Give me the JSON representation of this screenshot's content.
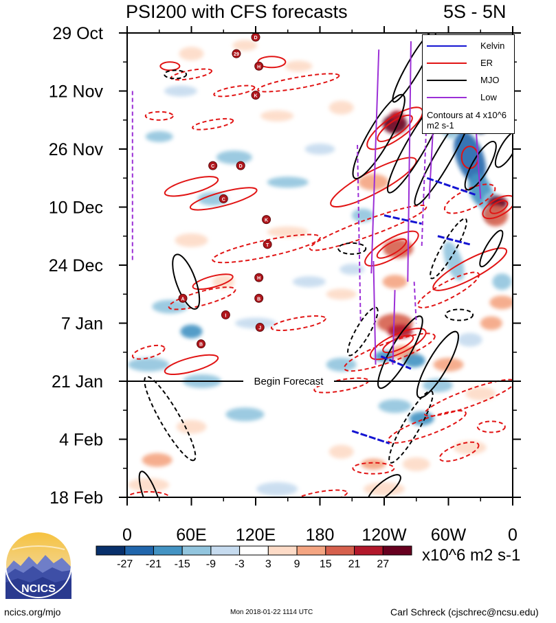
{
  "header": {
    "title": "PSI200 with CFS forecasts",
    "region": "5S - 5N"
  },
  "chart_data": {
    "type": "heatmap",
    "title": "PSI200 with CFS forecasts",
    "region": "5S - 5N",
    "x_tick_labels": [
      "0",
      "60E",
      "120E",
      "180",
      "120W",
      "60W",
      "0"
    ],
    "x_tick_degrees": [
      0,
      60,
      120,
      180,
      240,
      300,
      360
    ],
    "xlim": [
      0,
      360
    ],
    "y_tick_labels": [
      "29 Oct",
      "12 Nov",
      "26 Nov",
      "10 Dec",
      "24 Dec",
      "7 Jan",
      "21 Jan",
      "4 Feb",
      "18 Feb"
    ],
    "y_days_since_start": [
      0,
      14,
      28,
      42,
      56,
      70,
      84,
      98,
      112
    ],
    "forecast_marker": {
      "label": "Begin Forecast",
      "at": "21 Jan"
    },
    "colorbar": {
      "labels": [
        "-27",
        "-21",
        "-15",
        "-9",
        "-3",
        "3",
        "9",
        "15",
        "21",
        "27"
      ],
      "colors": [
        "#08306b",
        "#2166ac",
        "#4393c3",
        "#92c5de",
        "#c6dbef",
        "#ffffff",
        "#fddbc7",
        "#f4a582",
        "#d6604d",
        "#b2182b",
        "#67001f"
      ],
      "units": "x10^6 m2 s-1"
    },
    "legend": {
      "placement": "top-right",
      "items": [
        {
          "label": "Kelvin",
          "color": "#1414d2",
          "dash": "solid"
        },
        {
          "label": "ER",
          "color": "#e11414",
          "dash": "solid"
        },
        {
          "label": "MJO",
          "color": "#000000",
          "dash": "solid"
        },
        {
          "label": "Low",
          "color": "#9b2fd6",
          "dash": "solid"
        }
      ],
      "note": "Contours at 4 x10^6 m2 s-1"
    },
    "storm_markers": [
      {
        "label": "D",
        "lon": 120,
        "day": 1
      },
      {
        "label": "29",
        "lon": 102,
        "day": 5
      },
      {
        "label": "H",
        "lon": 123,
        "day": 8
      },
      {
        "label": "K",
        "lon": 120,
        "day": 15
      },
      {
        "label": "C",
        "lon": 80,
        "day": 32
      },
      {
        "label": "D",
        "lon": 106,
        "day": 32
      },
      {
        "label": "C",
        "lon": 90,
        "day": 40
      },
      {
        "label": "K",
        "lon": 130,
        "day": 45
      },
      {
        "label": "T",
        "lon": 131,
        "day": 51
      },
      {
        "label": "H",
        "lon": 123,
        "day": 59
      },
      {
        "label": "A",
        "lon": 52,
        "day": 64
      },
      {
        "label": "B",
        "lon": 123,
        "day": 64
      },
      {
        "label": "I",
        "lon": 92,
        "day": 68
      },
      {
        "label": "J",
        "lon": 124,
        "day": 71
      },
      {
        "label": "B",
        "lon": 69,
        "day": 75
      }
    ]
  },
  "footer": {
    "left": "ncics.org/mjo",
    "center": "Mon 2018-01-22 1114 UTC",
    "right": "Carl Schreck (cjschrec@ncsu.edu)"
  },
  "logo": {
    "text": "NCICS"
  }
}
